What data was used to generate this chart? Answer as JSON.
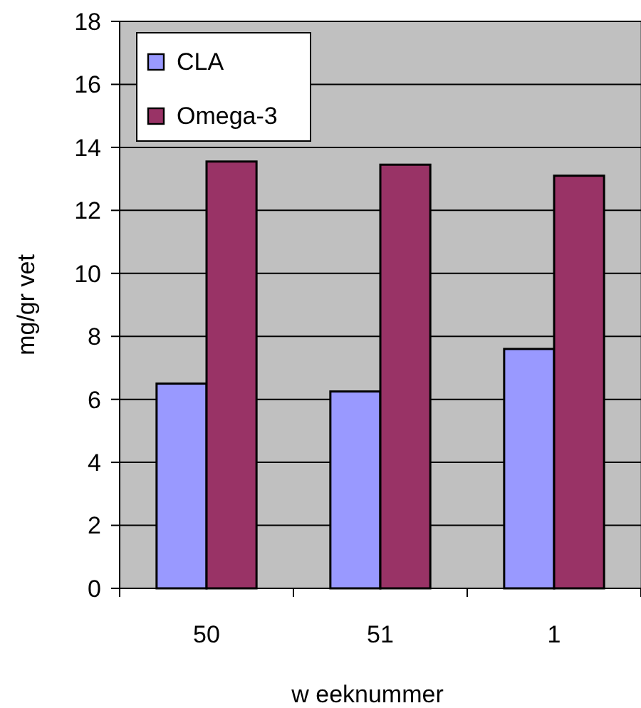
{
  "chart_data": {
    "type": "bar",
    "categories": [
      "50",
      "51",
      "1"
    ],
    "series": [
      {
        "name": "CLA",
        "color": "#9999ff",
        "values": [
          6.5,
          6.25,
          7.6
        ]
      },
      {
        "name": "Omega-3",
        "color": "#993366",
        "values": [
          13.55,
          13.45,
          13.1
        ]
      }
    ],
    "xlabel": "w eeknummer",
    "ylabel": "mg/gr vet",
    "ylim": [
      0,
      18
    ],
    "yticks": [
      0,
      2,
      4,
      6,
      8,
      10,
      12,
      14,
      16,
      18
    ],
    "grid": "y",
    "legend": "top left"
  }
}
